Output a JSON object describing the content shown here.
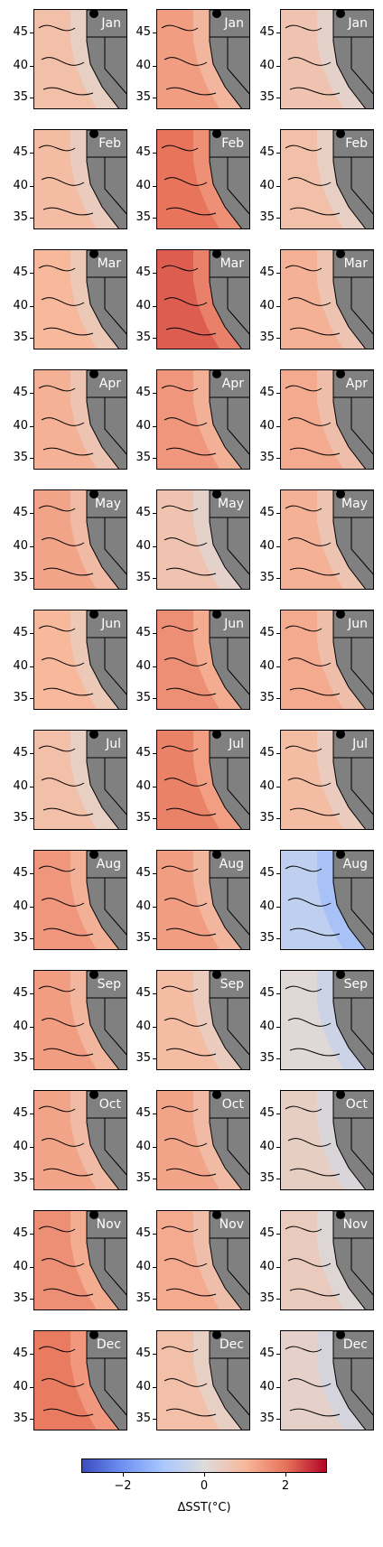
{
  "chart_data": {
    "type": "heatmap",
    "title": "",
    "layout": "12 rows (months) x 3 columns",
    "months": [
      "Jan",
      "Feb",
      "Mar",
      "Apr",
      "May",
      "Jun",
      "Jul",
      "Aug",
      "Sep",
      "Oct",
      "Nov",
      "Dec"
    ],
    "latitude_ticks": [
      "45",
      "40",
      "35"
    ],
    "colorbar": {
      "label": "ΔSST(°C)",
      "range": [
        -3,
        3
      ],
      "ticks": [
        "−2",
        "0",
        "2"
      ],
      "colormap": "coolwarm",
      "colors": [
        "#3b4cc0",
        "#6f92f3",
        "#aac7fd",
        "#dddcdc",
        "#f7b89c",
        "#e7745b",
        "#b40426"
      ]
    },
    "land_color": "#808080",
    "panel_mean_anomaly": [
      [
        0.8,
        1.4,
        0.7
      ],
      [
        0.9,
        2.0,
        0.8
      ],
      [
        1.0,
        2.2,
        1.1
      ],
      [
        1.1,
        1.5,
        1.2
      ],
      [
        1.3,
        0.7,
        1.1
      ],
      [
        1.0,
        1.6,
        1.2
      ],
      [
        0.8,
        1.8,
        0.9
      ],
      [
        1.5,
        1.4,
        -0.6
      ],
      [
        1.4,
        0.9,
        0.1
      ],
      [
        1.3,
        1.3,
        0.4
      ],
      [
        1.6,
        1.2,
        0.5
      ],
      [
        1.9,
        0.8,
        0.3
      ]
    ]
  }
}
